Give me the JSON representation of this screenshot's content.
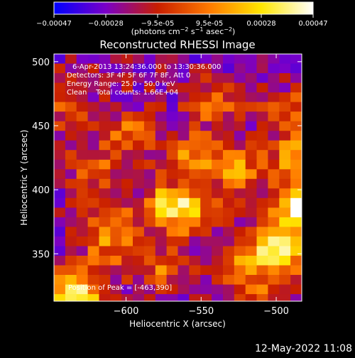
{
  "chart_data": [
    {
      "type": "colorbar",
      "ticks": [
        "-0.00047",
        "-0.00028",
        "-9.5e-05",
        "9.5e-05",
        "0.00028",
        "0.00047"
      ],
      "unit_label": "(photons cm^-2 s^-1 asec^-2)",
      "range": [
        -0.00047,
        0.00047
      ],
      "colormap": [
        "#0000ff",
        "#7a00c8",
        "#c81e00",
        "#ff7a00",
        "#ffe600",
        "#ffffff"
      ]
    },
    {
      "type": "heatmap",
      "title": "Reconstructed RHESSI Image",
      "xlabel": "Heliocentric X (arcsec)",
      "ylabel": "Heliocentric Y (arcsec)",
      "xlim": [
        -648,
        -483
      ],
      "ylim": [
        313,
        506
      ],
      "x_ticks": [
        -600,
        -550,
        -500
      ],
      "y_ticks": [
        350,
        400,
        450,
        500
      ],
      "x_tick_labels": [
        "−600",
        "−550",
        "−500"
      ],
      "y_tick_labels": [
        "350",
        "400",
        "450",
        "500"
      ],
      "peak": {
        "x": -463,
        "y": 390,
        "label": "Position of Peak = [-463,390]"
      },
      "hot_spots": [
        {
          "x": -488,
          "y": 392,
          "level": 1.0
        },
        {
          "x": -500,
          "y": 358,
          "level": 0.95
        },
        {
          "x": -638,
          "y": 322,
          "level": 0.9
        },
        {
          "x": -575,
          "y": 392,
          "level": 0.6
        },
        {
          "x": -525,
          "y": 345,
          "level": 0.55
        },
        {
          "x": -530,
          "y": 420,
          "level": 0.5
        },
        {
          "x": -612,
          "y": 375,
          "level": 0.45
        },
        {
          "x": -490,
          "y": 430,
          "level": 0.55
        },
        {
          "x": -560,
          "y": 430,
          "level": 0.45
        },
        {
          "x": -600,
          "y": 448,
          "level": 0.4
        },
        {
          "x": -625,
          "y": 420,
          "level": 0.35
        },
        {
          "x": -545,
          "y": 470,
          "level": 0.35
        },
        {
          "x": -495,
          "y": 465,
          "level": 0.35
        },
        {
          "x": -645,
          "y": 470,
          "level": 0.3
        },
        {
          "x": -580,
          "y": 340,
          "level": 0.35
        },
        {
          "x": -515,
          "y": 315,
          "level": 0.35
        },
        {
          "x": -618,
          "y": 350,
          "level": 0.3
        },
        {
          "x": -560,
          "y": 385,
          "level": 0.45
        }
      ],
      "annotations": [
        "6-Apr-2013 13:24:36.000 to 13:30:36.000",
        "Detectors: 3F 4F 5F 6F 7F 8F, Att 0",
        "Energy Range: 25.0 - 50.0 keV",
        "Clean    Total counts: 1.66E+04"
      ]
    }
  ],
  "footer": {
    "timestamp": "12-May-2022 11:08"
  }
}
